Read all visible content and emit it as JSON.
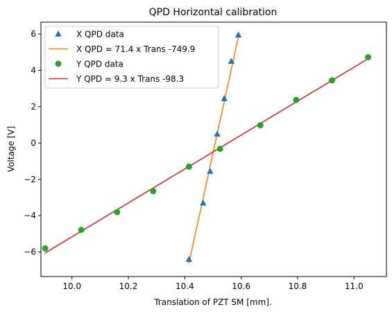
{
  "chart_data": {
    "type": "scatter",
    "title": "QPD Horizontal calibration",
    "xlabel": "Translation of PZT SM [mm].",
    "ylabel": "Voltage [V]",
    "xlim": [
      9.89,
      11.115
    ],
    "ylim": [
      -7.35,
      6.65
    ],
    "xticks": [
      "10.0",
      "10.2",
      "10.4",
      "10.6",
      "10.8",
      "11.0"
    ],
    "yticks": [
      "−6",
      "−4",
      "−2",
      "0",
      "2",
      "4",
      "6"
    ],
    "grid": false,
    "legend_position": "top-left",
    "series": [
      {
        "name": "X QPD data",
        "kind": "scatter",
        "marker": "triangle",
        "color": "#1f77b4",
        "points": [
          [
            10.415,
            -6.4
          ],
          [
            10.465,
            -3.3
          ],
          [
            10.49,
            -1.55
          ],
          [
            10.515,
            0.5
          ],
          [
            10.54,
            2.45
          ],
          [
            10.565,
            4.5
          ],
          [
            10.59,
            5.95
          ]
        ]
      },
      {
        "name": "X QPD = 71.4 x Trans -749.9",
        "kind": "line",
        "color": "#ff7f0e",
        "points": [
          [
            10.415,
            -6.6
          ],
          [
            10.593,
            6.05
          ]
        ]
      },
      {
        "name": "Y QPD data",
        "kind": "scatter",
        "marker": "circle",
        "color": "#2ca02c",
        "points": [
          [
            9.905,
            -5.8
          ],
          [
            10.033,
            -4.78
          ],
          [
            10.16,
            -3.8
          ],
          [
            10.288,
            -2.65
          ],
          [
            10.415,
            -1.3
          ],
          [
            10.525,
            -0.32
          ],
          [
            10.668,
            0.98
          ],
          [
            10.795,
            2.37
          ],
          [
            10.922,
            3.45
          ],
          [
            11.05,
            4.72
          ]
        ]
      },
      {
        "name": "Y QPD = 9.3 x Trans -98.3",
        "kind": "line",
        "color": "#d62728",
        "points": [
          [
            9.905,
            -6.05
          ],
          [
            11.05,
            4.64
          ]
        ]
      }
    ]
  }
}
